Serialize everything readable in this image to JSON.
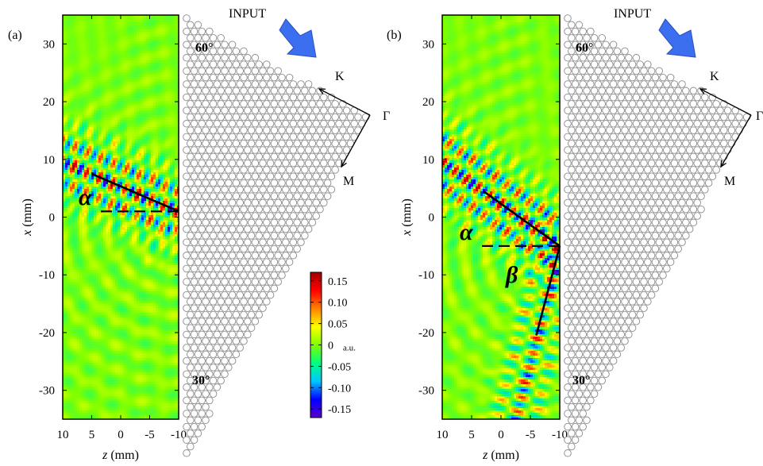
{
  "chart_data": [
    {
      "type": "heatmap",
      "panel_label": "(a)",
      "xlabel_var": "z",
      "xlabel_unit": " (mm)",
      "ylabel_var": "x",
      "ylabel_unit": " (mm)",
      "xlim": [
        10,
        -10
      ],
      "ylim": [
        -35,
        35
      ],
      "xticks": [
        "10",
        "5",
        "0",
        "-5",
        "-10"
      ],
      "yticks": [
        "30",
        "20",
        "10",
        "0",
        "-10",
        "-20",
        "-30"
      ],
      "field": {
        "beam_origin": [
          -10,
          1
        ],
        "beam_tip": [
          5,
          7.5
        ],
        "beam2_tip": null,
        "ring_origin": [
          -10,
          0
        ]
      },
      "angle_labels": [
        "α"
      ],
      "input_label": "INPUT",
      "crystal_angle_top": "60°",
      "crystal_angle_bottom": "30°",
      "lattice_labels": {
        "K": "K",
        "Gamma": "Γ",
        "M": "M"
      }
    },
    {
      "type": "heatmap",
      "panel_label": "(b)",
      "xlabel_var": "z",
      "xlabel_unit": " (mm)",
      "ylabel_var": "x",
      "ylabel_unit": " (mm)",
      "xlim": [
        10,
        -10
      ],
      "ylim": [
        -35,
        35
      ],
      "xticks": [
        "10",
        "5",
        "0",
        "-5",
        "-10"
      ],
      "yticks": [
        "30",
        "20",
        "10",
        "0",
        "-10",
        "-20",
        "-30"
      ],
      "field": {
        "beam_origin": [
          -10,
          -5
        ],
        "beam_tip": [
          3,
          4.5
        ],
        "beam2_tip": [
          -6,
          -20.5
        ],
        "ring_origin": [
          -10,
          -5
        ]
      },
      "angle_labels": [
        "α",
        "β"
      ],
      "input_label": "INPUT",
      "crystal_angle_top": "60°",
      "crystal_angle_bottom": "30°",
      "lattice_labels": {
        "K": "K",
        "Gamma": "Γ",
        "M": "M"
      }
    }
  ],
  "colorbar": {
    "ticks": [
      "0.15",
      "0.10",
      "0.05",
      "0",
      "-0.05",
      "-0.10",
      "-0.15"
    ],
    "unit": "a.u.",
    "range": [
      -0.17,
      0.17
    ],
    "colors": [
      "#5b00c8",
      "#0000ff",
      "#00c8ff",
      "#00ff7f",
      "#7fff00",
      "#ffff00",
      "#ff8000",
      "#ff0000",
      "#a00000"
    ]
  }
}
